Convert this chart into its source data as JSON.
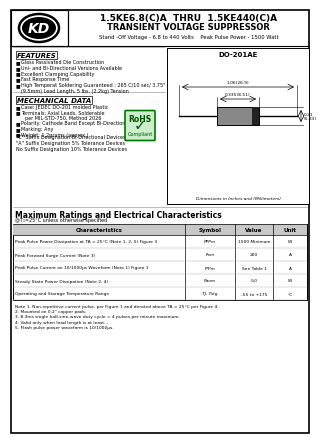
{
  "title_part": "1.5KE6.8(C)A  THRU  1.5KE440(C)A",
  "title_main": "TRANSIENT VOLTAGE SUPPRESSOR",
  "title_sub": "Stand -Off Voltage - 6.8 to 440 Volts    Peak Pulse Power - 1500 Watt",
  "features_title": "FEATURES",
  "features": [
    "Glass Passivated Die Construction",
    "Uni- and Bi-Directional Versions Available",
    "Excellent Clamping Capability",
    "Fast Response Time",
    "High Temperat Soldering Guaranteed : 265 C/10 sec/ 3.75\"",
    "(9.5mm) Lead Length, 5 lbs. (2.2kg) Tension"
  ],
  "mech_title": "MECHANICAL DATA",
  "mech_items": [
    "Case: JEDEC DO-201 molded Plastic",
    "Terminals: Axial Leads, Solderable",
    "  per MIL-STD-750, Method 2026",
    "Polarity: Cathode Band Except Bi-Directional",
    "Marking: Any",
    "Weight: 1.2grams (approx.)"
  ],
  "package": "DO-201AE",
  "suffix_notes": [
    "\"C\" Suffix Designation Bi-Directional Devices",
    "\"A\" Suffix Designation 5% Tolerance Devices",
    "No Suffix Designation 10% Tolerance Devices"
  ],
  "table_title": "Maximum Ratings and Electrical Characteristics",
  "table_subtitle": "@T₁=25°C unless otherwise specified",
  "table_headers": [
    "Characteristics",
    "Symbol",
    "Value",
    "Unit"
  ],
  "table_rows": [
    [
      "Peak Pulse Power Dissipation at TA = 25°C (Note 1, 2, 5) Figure 3",
      "PPPm",
      "1500 Minimum",
      "W"
    ],
    [
      "Peak Forward Surge Current (Note 3)",
      "Ifsm",
      "200",
      "A"
    ],
    [
      "Peak Pulse Current on 10/1000μs Waveform (Note 1) Figure 1",
      "IPPm",
      "See Table 1",
      "A"
    ],
    [
      "Steady State Power Dissipation (Note 2, 4)",
      "Paom",
      "5.0",
      "W"
    ],
    [
      "Operating and Storage Temperature Range",
      "TJ, Tstg",
      "-55 to +175",
      "°C"
    ]
  ],
  "notes": [
    "Note 1. Non-repetitive current pulse, per Figure 1 and derated above TA = 25°C per Figure 4.",
    "2. Mounted on 0.2\" copper pads.",
    "3. 8.3ms single half-sine-wave duty cycle = 4 pulses per minute maximum.",
    "4. Valid only when lead length is at least...",
    "5. Flash pulse power waveform is 10/1000μs."
  ],
  "dim_body_len": "0.335(8.51)",
  "dim_total_len": "1.06(26.9)",
  "dim_dia": "0.21\n(5.33)",
  "dim_label": "Dimensions in Inches and (Millimeters)",
  "bg_color": "#ffffff",
  "header_bg": "#c8c8c8",
  "rohs_border": "#007700",
  "rohs_fill": "#cceecc"
}
